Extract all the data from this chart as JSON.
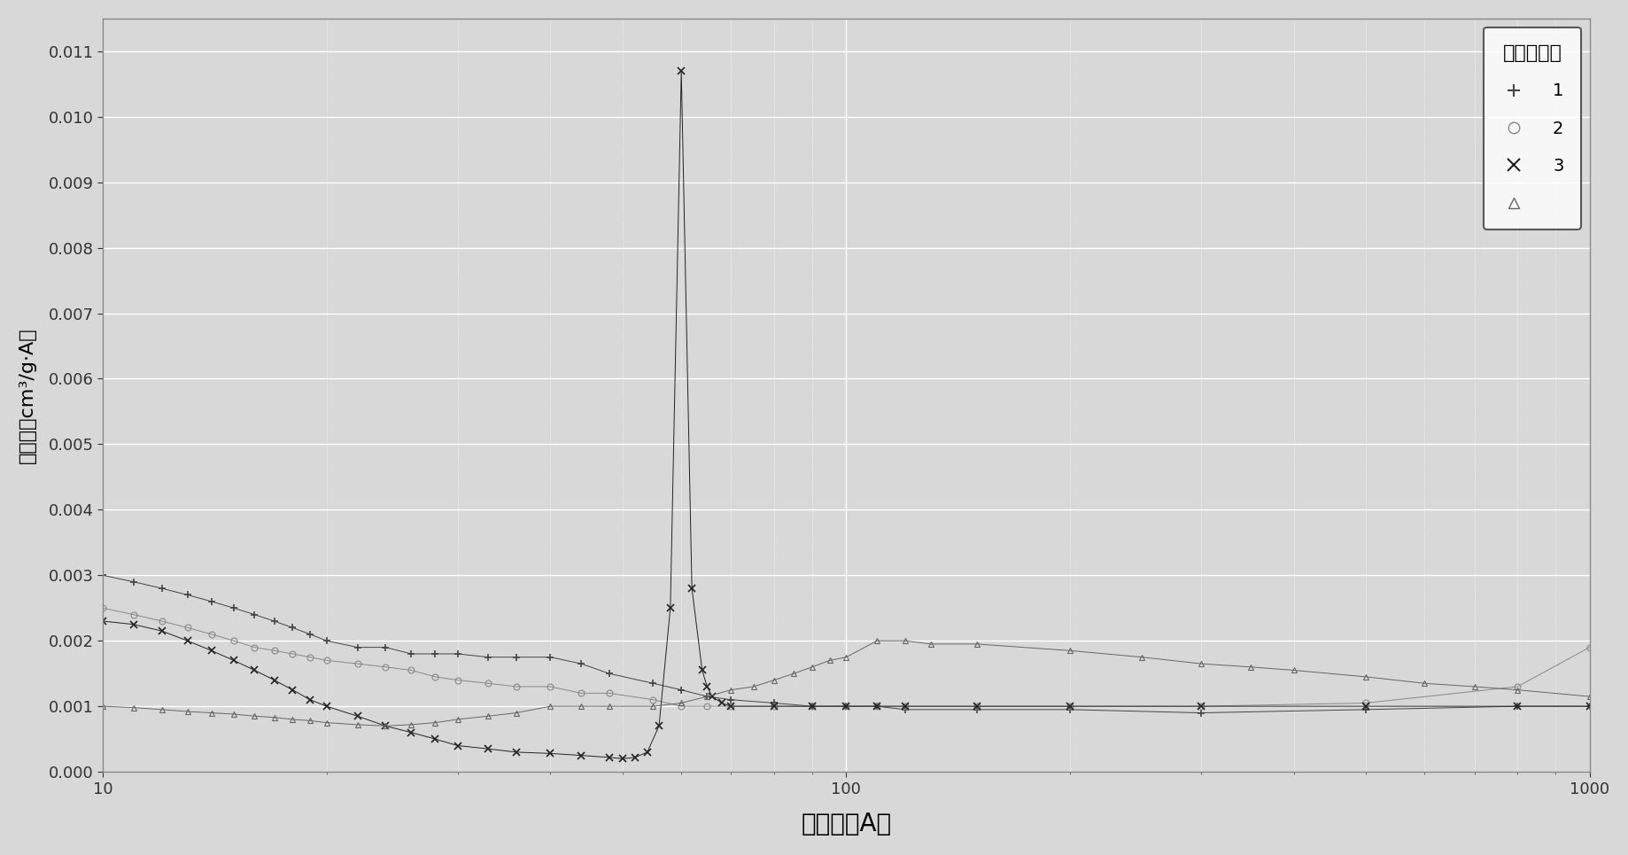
{
  "title": "",
  "xlabel": "孔直径（A）",
  "ylabel": "孔体积（cm³/g·A）",
  "legend_title": "工作实施例",
  "legend_entries": [
    "1",
    "2",
    "3",
    ""
  ],
  "xlim_log": [
    10,
    1000
  ],
  "ylim": [
    0.0,
    0.0115
  ],
  "yticks": [
    0.0,
    0.001,
    0.002,
    0.003,
    0.004,
    0.005,
    0.006,
    0.007,
    0.008,
    0.009,
    0.01,
    0.011
  ],
  "background_color": "#d8d8d8",
  "plot_bg_color": "#d8d8d8",
  "grid_color": "#ffffff",
  "series1_color": "#444444",
  "series2_color": "#888888",
  "series3_color": "#222222",
  "series4_color": "#666666",
  "series1_x": [
    10,
    11,
    12,
    13,
    14,
    15,
    16,
    17,
    18,
    19,
    20,
    22,
    24,
    26,
    28,
    30,
    33,
    36,
    40,
    44,
    48,
    55,
    60,
    65,
    70,
    80,
    90,
    100,
    110,
    120,
    150,
    200,
    300,
    500,
    800,
    1000
  ],
  "series1_y": [
    0.003,
    0.0029,
    0.0028,
    0.0027,
    0.0026,
    0.0025,
    0.0024,
    0.0023,
    0.0022,
    0.0021,
    0.002,
    0.0019,
    0.0019,
    0.0018,
    0.0018,
    0.0018,
    0.00175,
    0.00175,
    0.00175,
    0.00165,
    0.0015,
    0.00135,
    0.00125,
    0.00115,
    0.0011,
    0.00105,
    0.001,
    0.001,
    0.001,
    0.00095,
    0.00095,
    0.00095,
    0.0009,
    0.00095,
    0.001,
    0.001
  ],
  "series2_x": [
    10,
    11,
    12,
    13,
    14,
    15,
    16,
    17,
    18,
    19,
    20,
    22,
    24,
    26,
    28,
    30,
    33,
    36,
    40,
    44,
    48,
    55,
    60,
    65,
    70,
    80,
    90,
    100,
    110,
    120,
    150,
    200,
    300,
    500,
    800,
    1000
  ],
  "series2_y": [
    0.0025,
    0.0024,
    0.0023,
    0.0022,
    0.0021,
    0.002,
    0.0019,
    0.00185,
    0.0018,
    0.00175,
    0.0017,
    0.00165,
    0.0016,
    0.00155,
    0.00145,
    0.0014,
    0.00135,
    0.0013,
    0.0013,
    0.0012,
    0.0012,
    0.0011,
    0.001,
    0.001,
    0.001,
    0.001,
    0.001,
    0.001,
    0.001,
    0.001,
    0.001,
    0.001,
    0.001,
    0.00105,
    0.0013,
    0.0019
  ],
  "series3_x": [
    10,
    11,
    12,
    13,
    14,
    15,
    16,
    17,
    18,
    19,
    20,
    22,
    24,
    26,
    28,
    30,
    33,
    36,
    40,
    44,
    48,
    50,
    52,
    54,
    56,
    58,
    60,
    62,
    64,
    65,
    66,
    68,
    70,
    80,
    90,
    100,
    110,
    120,
    150,
    200,
    300,
    500,
    800,
    1000
  ],
  "series3_y": [
    0.0023,
    0.00225,
    0.00215,
    0.002,
    0.00185,
    0.0017,
    0.00155,
    0.0014,
    0.00125,
    0.0011,
    0.001,
    0.00085,
    0.0007,
    0.0006,
    0.0005,
    0.0004,
    0.00035,
    0.0003,
    0.00028,
    0.00025,
    0.00022,
    0.0002,
    0.00022,
    0.0003,
    0.0007,
    0.0025,
    0.0107,
    0.0028,
    0.00155,
    0.0013,
    0.00115,
    0.00105,
    0.001,
    0.001,
    0.001,
    0.001,
    0.001,
    0.001,
    0.001,
    0.001,
    0.001,
    0.001,
    0.001,
    0.001
  ],
  "series4_x": [
    10,
    11,
    12,
    13,
    14,
    15,
    16,
    17,
    18,
    19,
    20,
    22,
    24,
    26,
    28,
    30,
    33,
    36,
    40,
    44,
    48,
    55,
    60,
    65,
    70,
    75,
    80,
    85,
    90,
    95,
    100,
    110,
    120,
    130,
    150,
    200,
    250,
    300,
    350,
    400,
    500,
    600,
    700,
    800,
    1000
  ],
  "series4_y": [
    0.001,
    0.00098,
    0.00095,
    0.00092,
    0.0009,
    0.00088,
    0.00085,
    0.00083,
    0.0008,
    0.00078,
    0.00075,
    0.00072,
    0.0007,
    0.00072,
    0.00075,
    0.0008,
    0.00085,
    0.0009,
    0.001,
    0.001,
    0.001,
    0.001,
    0.00105,
    0.00115,
    0.00125,
    0.0013,
    0.0014,
    0.0015,
    0.0016,
    0.0017,
    0.00175,
    0.002,
    0.002,
    0.00195,
    0.00195,
    0.00185,
    0.00175,
    0.00165,
    0.0016,
    0.00155,
    0.00145,
    0.00135,
    0.0013,
    0.00125,
    0.00115
  ]
}
